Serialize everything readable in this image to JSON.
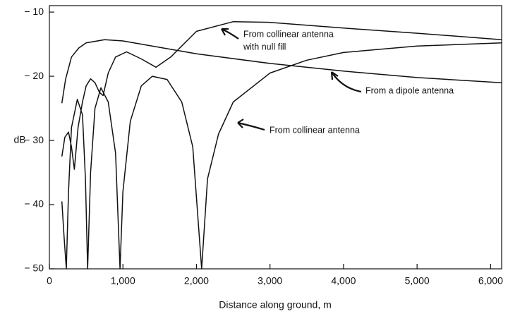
{
  "chart_data": {
    "type": "line",
    "xlabel": "Distance along ground, m",
    "ylabel": "dB",
    "xlim": [
      0,
      6150
    ],
    "ylim": [
      -50,
      -9
    ],
    "xticks": [
      0,
      {
        "value": 1000,
        "label": "1,000"
      },
      {
        "value": 2000,
        "label": "2,000"
      },
      {
        "value": 3000,
        "label": "3,000"
      },
      {
        "value": 4000,
        "label": "4,000"
      },
      {
        "value": 5000,
        "label": "5,000"
      },
      {
        "value": 6000,
        "label": "6,000"
      }
    ],
    "yticks": [
      {
        "value": -10,
        "label": "− 10"
      },
      {
        "value": -20,
        "label": "− 20"
      },
      {
        "value": -30,
        "label": "− 30"
      },
      {
        "value": -40,
        "label": "− 40"
      },
      {
        "value": -50,
        "label": "− 50"
      }
    ],
    "series": [
      {
        "name": "From a dipole antenna",
        "color": "#111111",
        "x": [
          170,
          220,
          300,
          400,
          500,
          750,
          1000,
          1500,
          2000,
          3000,
          4000,
          5000,
          6150
        ],
        "values": [
          -24.2,
          -20.5,
          -17,
          -15.6,
          -14.8,
          -14.3,
          -14.5,
          -15.5,
          -16.5,
          -18,
          -19.2,
          -20.2,
          -21
        ]
      },
      {
        "name": "From collinear antenna with null fill",
        "color": "#111111",
        "x": [
          170,
          210,
          260,
          300,
          340,
          390,
          450,
          500,
          560,
          620,
          680,
          730,
          800,
          900,
          1050,
          1250,
          1450,
          1650,
          2000,
          2500,
          3000,
          4000,
          5000,
          6150
        ],
        "values": [
          -32.5,
          -29.5,
          -28.7,
          -31,
          -34.5,
          -28,
          -24,
          -21.5,
          -20.4,
          -21,
          -22.5,
          -23,
          -19.5,
          -17,
          -16.2,
          -17.3,
          -18.6,
          -17,
          -13,
          -11.5,
          -11.6,
          -12.5,
          -13.3,
          -14.3
        ]
      },
      {
        "name": "From collinear antenna",
        "color": "#111111",
        "x": [
          170,
          200,
          230,
          260,
          300,
          380,
          450,
          490,
          520,
          560,
          620,
          700,
          800,
          900,
          960,
          1000,
          1100,
          1250,
          1400,
          1600,
          1800,
          1950,
          2070,
          2150,
          2300,
          2500,
          3000,
          3500,
          4000,
          5000,
          6150
        ],
        "values": [
          -39.5,
          -45,
          -50,
          -38,
          -28,
          -23.6,
          -26,
          -36,
          -50,
          -35,
          -25,
          -21.8,
          -24,
          -32,
          -50,
          -38,
          -27,
          -21.5,
          -20,
          -20.5,
          -24,
          -31,
          -50,
          -36,
          -29,
          -24,
          -19.5,
          -17.5,
          -16.3,
          -15.3,
          -14.8
        ]
      }
    ],
    "annotations": [
      "From collinear antenna",
      "with null fill",
      "From a dipole antenna",
      "From collinear antenna"
    ]
  }
}
